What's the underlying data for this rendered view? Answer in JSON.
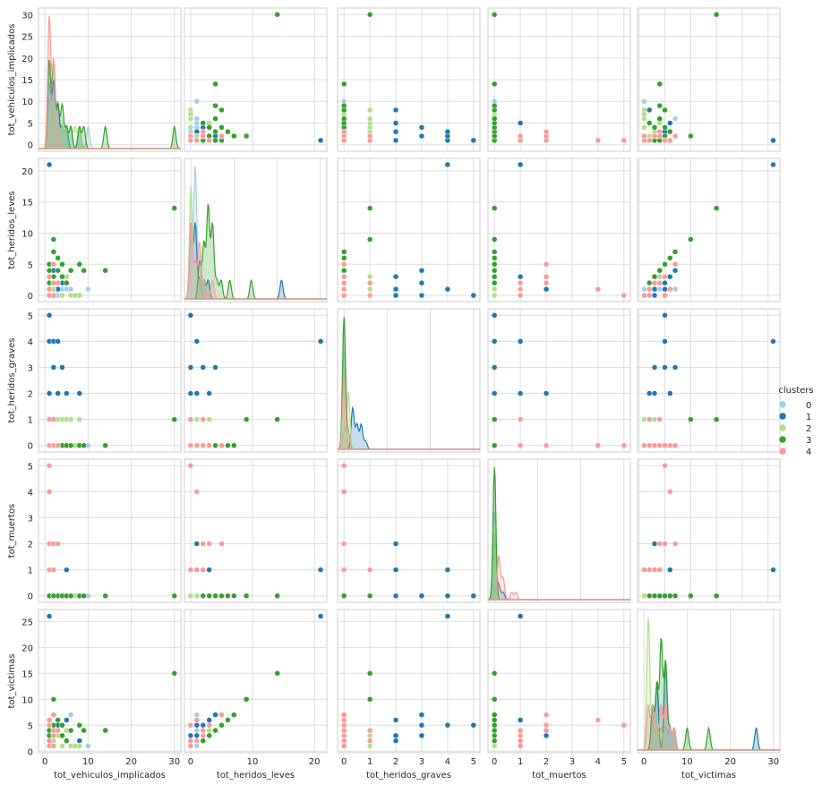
{
  "chart_data": {
    "type": "scatter",
    "kind": "pairplot",
    "variables": [
      "tot_vehiculos_implicados",
      "tot_heridos_leves",
      "tot_heridos_graves",
      "tot_muertos",
      "tot_victimas"
    ],
    "axis_ranges": {
      "tot_vehiculos_implicados": [
        -1.5,
        31.5
      ],
      "tot_heridos_leves": [
        -1,
        22
      ],
      "tot_heridos_graves": [
        -0.25,
        5.25
      ],
      "tot_muertos": [
        -0.25,
        5.25
      ],
      "tot_victimas": [
        -0.3,
        27.3
      ]
    },
    "ticks": {
      "tot_vehiculos_implicados": [
        0,
        10,
        20,
        30
      ],
      "tot_heridos_leves": [
        0,
        10,
        20
      ],
      "tot_heridos_graves": [
        0,
        1,
        2,
        3,
        4,
        5
      ],
      "tot_muertos": [
        0,
        1,
        2,
        3,
        4,
        5
      ],
      "tot_victimas": [
        0,
        5,
        10,
        15,
        20,
        25
      ]
    },
    "diag_ticks": [
      0,
      10,
      20,
      30
    ],
    "row_ticks": {
      "tot_vehiculos_implicados": [
        0,
        5,
        10,
        15,
        20,
        25,
        30
      ],
      "tot_heridos_leves": [
        0,
        5,
        10,
        15,
        20
      ],
      "tot_heridos_graves": [
        0,
        1,
        2,
        3,
        4,
        5
      ],
      "tot_muertos": [
        0,
        1,
        2,
        3,
        4,
        5
      ],
      "tot_victimas": [
        0,
        5,
        10,
        15,
        20,
        25
      ]
    },
    "grid": true,
    "legend": {
      "title": "clusters",
      "placement": "right",
      "entries": [
        "0",
        "1",
        "2",
        "3",
        "4"
      ]
    },
    "colors": {
      "0": "#a6cee3",
      "1": "#1f78b4",
      "2": "#b2df8a",
      "3": "#33a02c",
      "4": "#fb9a99"
    },
    "points": [
      [
        1,
        0,
        0,
        0,
        1,
        0
      ],
      [
        1,
        1,
        0,
        0,
        2,
        0
      ],
      [
        1,
        2,
        0,
        0,
        3,
        0
      ],
      [
        2,
        0,
        0,
        0,
        2,
        0
      ],
      [
        2,
        1,
        0,
        0,
        3,
        0
      ],
      [
        2,
        2,
        0,
        0,
        4,
        0
      ],
      [
        3,
        0,
        0,
        0,
        3,
        0
      ],
      [
        3,
        1,
        0,
        0,
        4,
        0
      ],
      [
        4,
        1,
        0,
        0,
        5,
        0
      ],
      [
        5,
        1,
        0,
        0,
        6,
        0
      ],
      [
        6,
        1,
        0,
        0,
        7,
        0
      ],
      [
        10,
        1,
        0,
        0,
        1,
        0
      ],
      [
        1,
        0,
        2,
        0,
        2,
        1
      ],
      [
        1,
        21,
        4,
        1,
        26,
        1
      ],
      [
        2,
        0,
        3,
        0,
        3,
        1
      ],
      [
        3,
        1,
        2,
        0,
        3,
        1
      ],
      [
        4,
        2,
        3,
        0,
        5,
        1
      ],
      [
        5,
        3,
        2,
        1,
        6,
        1
      ],
      [
        8,
        0,
        2,
        0,
        2,
        1
      ],
      [
        1,
        0,
        5,
        0,
        5,
        1
      ],
      [
        2,
        1,
        4,
        0,
        5,
        1
      ],
      [
        1,
        1,
        2,
        2,
        3,
        1
      ],
      [
        2,
        4,
        3,
        0,
        7,
        1
      ],
      [
        3,
        1,
        4,
        0,
        5,
        1
      ],
      [
        1,
        0,
        1,
        0,
        1,
        2
      ],
      [
        2,
        1,
        1,
        0,
        2,
        2
      ],
      [
        3,
        2,
        1,
        0,
        3,
        2
      ],
      [
        4,
        0,
        1,
        0,
        1,
        2
      ],
      [
        5,
        3,
        1,
        0,
        4,
        2
      ],
      [
        6,
        0,
        1,
        0,
        1,
        2
      ],
      [
        8,
        0,
        1,
        0,
        1,
        2
      ],
      [
        2,
        0,
        0,
        0,
        1,
        2
      ],
      [
        7,
        0,
        0,
        0,
        1,
        2
      ],
      [
        1,
        2,
        0,
        0,
        2,
        3
      ],
      [
        1,
        3,
        0,
        0,
        3,
        3
      ],
      [
        1,
        4,
        0,
        0,
        4,
        3
      ],
      [
        1,
        5,
        0,
        0,
        5,
        3
      ],
      [
        2,
        3,
        0,
        0,
        3,
        3
      ],
      [
        2,
        5,
        0,
        0,
        5,
        3
      ],
      [
        2,
        7,
        0,
        0,
        7,
        3
      ],
      [
        3,
        4,
        0,
        0,
        4,
        3
      ],
      [
        3,
        6,
        0,
        0,
        6,
        3
      ],
      [
        2,
        9,
        1,
        0,
        10,
        3
      ],
      [
        4,
        3,
        0,
        0,
        3,
        3
      ],
      [
        4,
        5,
        0,
        0,
        5,
        3
      ],
      [
        5,
        2,
        0,
        0,
        2,
        3
      ],
      [
        6,
        4,
        0,
        0,
        4,
        3
      ],
      [
        8,
        5,
        0,
        0,
        5,
        3
      ],
      [
        14,
        4,
        0,
        0,
        4,
        3
      ],
      [
        30,
        14,
        1,
        0,
        15,
        3
      ],
      [
        9,
        4,
        0,
        0,
        4,
        3
      ],
      [
        1,
        0,
        0,
        1,
        1,
        4
      ],
      [
        1,
        1,
        0,
        1,
        2,
        4
      ],
      [
        2,
        0,
        0,
        1,
        1,
        4
      ],
      [
        2,
        2,
        0,
        1,
        3,
        4
      ],
      [
        1,
        0,
        1,
        1,
        2,
        4
      ],
      [
        1,
        3,
        0,
        2,
        5,
        4
      ],
      [
        2,
        5,
        0,
        2,
        7,
        4
      ],
      [
        1,
        1,
        0,
        4,
        6,
        4
      ],
      [
        1,
        0,
        0,
        5,
        5,
        4
      ],
      [
        3,
        2,
        0,
        2,
        4,
        4
      ],
      [
        2,
        2,
        1,
        1,
        4,
        4
      ]
    ]
  }
}
